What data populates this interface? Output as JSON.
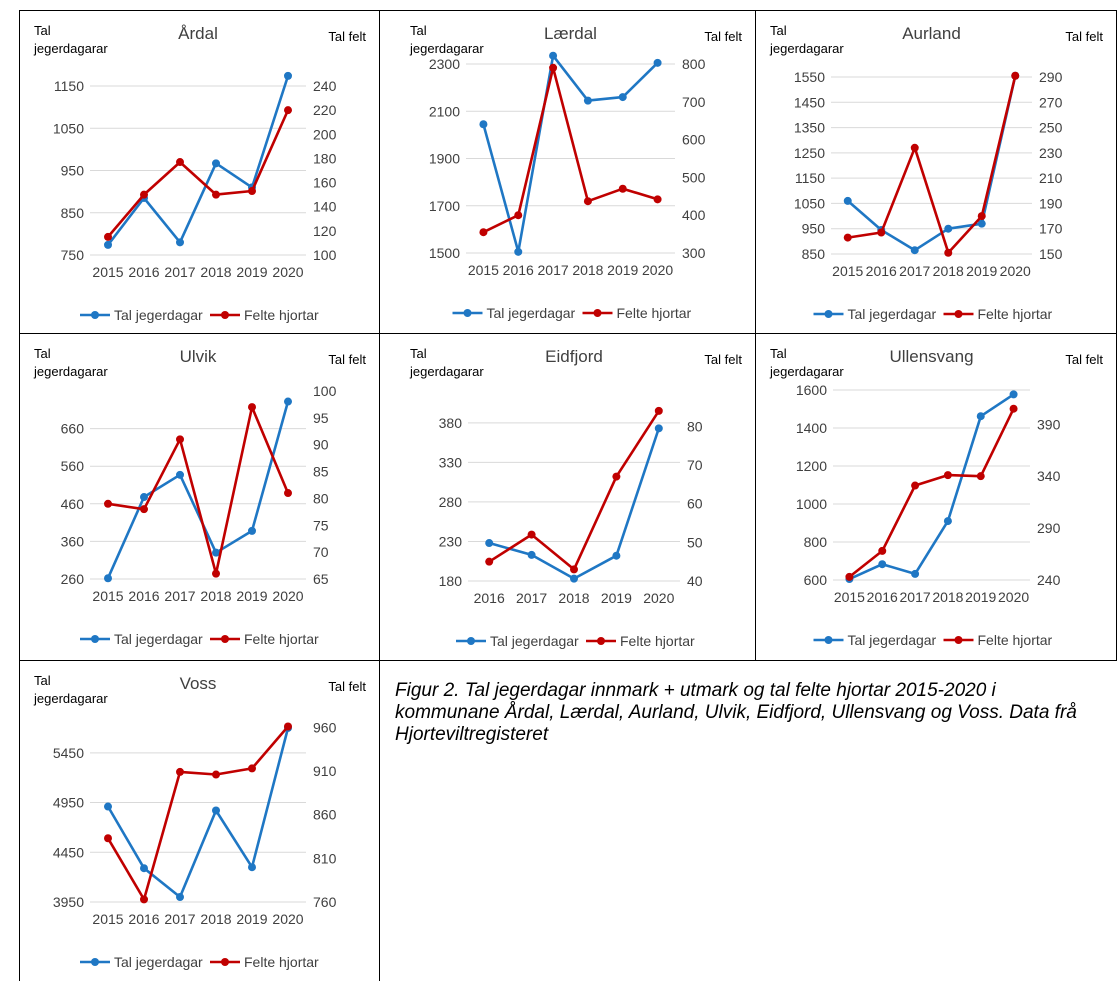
{
  "figure": {
    "caption": "Figur 2. Tal jegerdagar innmark + utmark og tal felte hjortar 2015-2020 i kommunane Årdal, Lærdal, Aurland, Ulvik, Eidfjord, Ullensvang og Voss. Data frå Hjorteviltregisteret"
  },
  "colors": {
    "series1": "#1f77c4",
    "series2": "#c00000",
    "gridline": "#d9d9d9",
    "text": "#404040"
  },
  "chart_data": [
    {
      "type": "line",
      "title": "Årdal",
      "ylabel_left": [
        "Tal",
        "jegerdagarar"
      ],
      "ylabel_right": "Tal felt",
      "categories": [
        "2015",
        "2016",
        "2017",
        "2018",
        "2019",
        "2020"
      ],
      "series": [
        {
          "name": "Tal jegerdagar",
          "axis": "left",
          "values": [
            774,
            885,
            780,
            967,
            910,
            1174
          ]
        },
        {
          "name": "Felte hjortar",
          "axis": "right",
          "values": [
            115,
            150,
            177,
            150,
            153,
            220
          ]
        }
      ],
      "ylim_left": [
        750,
        1150
      ],
      "yticks_left": [
        750,
        850,
        950,
        1050,
        1150
      ],
      "ylim_right": [
        100,
        240
      ],
      "yticks_right": [
        100,
        120,
        140,
        160,
        180,
        200,
        220,
        240
      ]
    },
    {
      "type": "line",
      "title": "Lærdal",
      "ylabel_left": [
        "Tal",
        "jegerdagarar"
      ],
      "ylabel_right": "Tal felt",
      "categories": [
        "2015",
        "2016",
        "2017",
        "2018",
        "2019",
        "2020"
      ],
      "series": [
        {
          "name": "Tal jegerdagar",
          "axis": "left",
          "values": [
            2045,
            1505,
            2335,
            2145,
            2160,
            2305
          ]
        },
        {
          "name": "Felte hjortar",
          "axis": "right",
          "values": [
            355,
            400,
            790,
            437,
            470,
            442
          ]
        }
      ],
      "ylim_left": [
        1500,
        2300
      ],
      "yticks_left": [
        1500,
        1700,
        1900,
        2100,
        2300
      ],
      "ylim_right": [
        300,
        800
      ],
      "yticks_right": [
        300,
        400,
        500,
        600,
        700,
        800
      ]
    },
    {
      "type": "line",
      "title": "Aurland",
      "ylabel_left": [
        "Tal",
        "jegerdagarar"
      ],
      "ylabel_right": "Tal felt",
      "categories": [
        "2015",
        "2016",
        "2017",
        "2018",
        "2019",
        "2020"
      ],
      "series": [
        {
          "name": "Tal jegerdagar",
          "axis": "left",
          "values": [
            1060,
            945,
            865,
            950,
            970,
            1555
          ]
        },
        {
          "name": "Felte hjortar",
          "axis": "right",
          "values": [
            163,
            167,
            234,
            151,
            180,
            291
          ]
        }
      ],
      "ylim_left": [
        850,
        1550
      ],
      "yticks_left": [
        850,
        950,
        1050,
        1150,
        1250,
        1350,
        1450,
        1550
      ],
      "ylim_right": [
        150,
        290
      ],
      "yticks_right": [
        150,
        170,
        190,
        210,
        230,
        250,
        270,
        290
      ]
    },
    {
      "type": "line",
      "title": "Ulvik",
      "ylabel_left": [
        "Tal",
        "jegerdagarar"
      ],
      "ylabel_right": "Tal felt",
      "categories": [
        "2015",
        "2016",
        "2017",
        "2018",
        "2019",
        "2020"
      ],
      "series": [
        {
          "name": "Tal jegerdagar",
          "axis": "left",
          "values": [
            262,
            478,
            537,
            330,
            388,
            732
          ]
        },
        {
          "name": "Felte hjortar",
          "axis": "right",
          "values": [
            79,
            78,
            91,
            66,
            97,
            81
          ]
        }
      ],
      "ylim_left": [
        260,
        760
      ],
      "yticks_left": [
        260,
        360,
        460,
        560,
        660
      ],
      "ylim_right": [
        65,
        100
      ],
      "yticks_right": [
        65,
        70,
        75,
        80,
        85,
        90,
        95,
        100
      ]
    },
    {
      "type": "line",
      "title": "Eidfjord",
      "ylabel_left": [
        "Tal",
        "jegerdagarar"
      ],
      "ylabel_right": "Tal felt",
      "categories": [
        "2016",
        "2017",
        "2018",
        "2019",
        "2020"
      ],
      "series": [
        {
          "name": "Tal jegerdagar",
          "axis": "left",
          "values": [
            228,
            213,
            183,
            212,
            373
          ]
        },
        {
          "name": "Felte hjortar",
          "axis": "right",
          "values": [
            45,
            52,
            43,
            67,
            84
          ]
        }
      ],
      "ylim_left": [
        180,
        400
      ],
      "yticks_left": [
        180,
        230,
        280,
        330,
        380
      ],
      "ylim_right": [
        40,
        85
      ],
      "yticks_right": [
        40,
        50,
        60,
        70,
        80
      ]
    },
    {
      "type": "line",
      "title": "Ullensvang",
      "ylabel_left": [
        "Tal",
        "jegerdagarar"
      ],
      "ylabel_right": "Tal felt",
      "categories": [
        "2015",
        "2016",
        "2017",
        "2018",
        "2019",
        "2020"
      ],
      "series": [
        {
          "name": "Tal jegerdagar",
          "axis": "left",
          "values": [
            605,
            683,
            632,
            910,
            1462,
            1577
          ]
        },
        {
          "name": "Felte hjortar",
          "axis": "right",
          "values": [
            243,
            268,
            331,
            341,
            340,
            405
          ]
        }
      ],
      "ylim_left": [
        600,
        1600
      ],
      "yticks_left": [
        600,
        800,
        1000,
        1200,
        1400,
        1600
      ],
      "ylim_right": [
        240,
        423
      ],
      "yticks_right": [
        240,
        290,
        340,
        390
      ]
    },
    {
      "type": "line",
      "title": "Voss",
      "ylabel_left": [
        "Tal",
        "jegerdagarar"
      ],
      "ylabel_right": "Tal felt",
      "categories": [
        "2015",
        "2016",
        "2017",
        "2018",
        "2019",
        "2020"
      ],
      "series": [
        {
          "name": "Tal jegerdagar",
          "axis": "left",
          "values": [
            4910,
            4290,
            4000,
            4870,
            4300,
            5700
          ]
        },
        {
          "name": "Felte hjortar",
          "axis": "right",
          "values": [
            833,
            763,
            909,
            906,
            913,
            961
          ]
        }
      ],
      "ylim_left": [
        3950,
        5750
      ],
      "yticks_left": [
        3950,
        4450,
        4950,
        5450
      ],
      "ylim_right": [
        760,
        965
      ],
      "yticks_right": [
        760,
        810,
        860,
        910,
        960
      ]
    }
  ]
}
